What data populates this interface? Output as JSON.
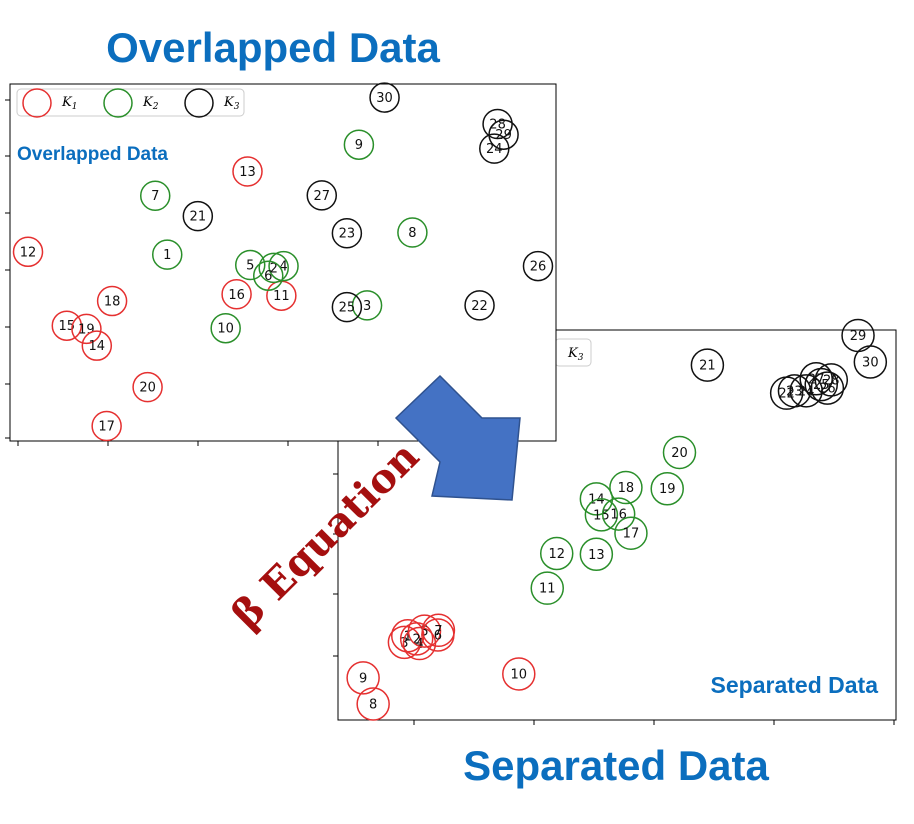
{
  "titles": {
    "overlapped": "Overlapped Data",
    "separated": "Separated Data"
  },
  "colors": {
    "title": "#0B6EBE",
    "k1": "#E53030",
    "k2": "#2A8F2A",
    "k3": "#111111",
    "arrow_fill": "#4472C4",
    "arrow_stroke": "#2F528F",
    "beta_text": "#A50F0F"
  },
  "arrow": {
    "label": "β Equation",
    "icon": "down-right-block-arrow-icon"
  },
  "legend": [
    {
      "base": "K",
      "sub": "1",
      "cluster": "k1"
    },
    {
      "base": "K",
      "sub": "2",
      "cluster": "k2"
    },
    {
      "base": "K",
      "sub": "3",
      "cluster": "k3"
    }
  ],
  "chart_data": [
    {
      "type": "scatter",
      "title": "",
      "panel_label": "Overlapped Data",
      "xlabel": "",
      "ylabel": "",
      "xlim": [
        0,
        100
      ],
      "ylim": [
        0,
        100
      ],
      "grid": false,
      "legend_placement": "top-left",
      "series": [
        {
          "name": "K1",
          "cluster": "k1",
          "points": [
            {
              "label": "12",
              "x": 3.3,
              "y": 53.0
            },
            {
              "label": "13",
              "x": 43.5,
              "y": 75.5
            },
            {
              "label": "16",
              "x": 41.5,
              "y": 41.1
            },
            {
              "label": "11",
              "x": 49.7,
              "y": 40.7
            },
            {
              "label": "18",
              "x": 18.7,
              "y": 39.2
            },
            {
              "label": "15",
              "x": 10.4,
              "y": 32.3
            },
            {
              "label": "19",
              "x": 14.0,
              "y": 31.4
            },
            {
              "label": "14",
              "x": 15.9,
              "y": 26.7
            },
            {
              "label": "20",
              "x": 25.2,
              "y": 15.1
            },
            {
              "label": "17",
              "x": 17.7,
              "y": 4.2
            }
          ]
        },
        {
          "name": "K2",
          "cluster": "k2",
          "points": [
            {
              "label": "9",
              "x": 63.9,
              "y": 83.0
            },
            {
              "label": "7",
              "x": 26.6,
              "y": 68.7
            },
            {
              "label": "8",
              "x": 73.7,
              "y": 58.4
            },
            {
              "label": "1",
              "x": 28.8,
              "y": 52.2
            },
            {
              "label": "5",
              "x": 44.0,
              "y": 49.3
            },
            {
              "label": "4",
              "x": 50.1,
              "y": 49.0
            },
            {
              "label": "2",
              "x": 48.3,
              "y": 48.5
            },
            {
              "label": "6",
              "x": 47.3,
              "y": 46.3
            },
            {
              "label": "3",
              "x": 65.4,
              "y": 38.0
            },
            {
              "label": "10",
              "x": 39.5,
              "y": 31.6
            }
          ]
        },
        {
          "name": "K3",
          "cluster": "k3",
          "points": [
            {
              "label": "30",
              "x": 68.6,
              "y": 96.2
            },
            {
              "label": "28",
              "x": 89.3,
              "y": 88.8
            },
            {
              "label": "29",
              "x": 90.4,
              "y": 85.8
            },
            {
              "label": "24",
              "x": 88.7,
              "y": 81.9
            },
            {
              "label": "27",
              "x": 57.1,
              "y": 68.8
            },
            {
              "label": "21",
              "x": 34.4,
              "y": 63.0
            },
            {
              "label": "23",
              "x": 61.7,
              "y": 58.2
            },
            {
              "label": "26",
              "x": 96.7,
              "y": 49.0
            },
            {
              "label": "22",
              "x": 86.0,
              "y": 38.0
            },
            {
              "label": "25",
              "x": 61.7,
              "y": 37.5
            }
          ]
        }
      ]
    },
    {
      "type": "scatter",
      "title": "",
      "panel_label": "Separated Data",
      "xlabel": "",
      "ylabel": "",
      "xlim": [
        0,
        100
      ],
      "ylim": [
        0,
        100
      ],
      "grid": false,
      "legend_placement": "top-left",
      "series": [
        {
          "name": "K1",
          "cluster": "k1",
          "points": [
            {
              "label": "9",
              "x": 4.5,
              "y": 10.8
            },
            {
              "label": "8",
              "x": 6.3,
              "y": 4.1
            },
            {
              "label": "10",
              "x": 32.4,
              "y": 11.8
            },
            {
              "label": "1",
              "x": 12.5,
              "y": 21.6
            },
            {
              "label": "3",
              "x": 11.9,
              "y": 19.9
            },
            {
              "label": "2",
              "x": 14.1,
              "y": 20.8
            },
            {
              "label": "4",
              "x": 14.6,
              "y": 19.6
            },
            {
              "label": "5",
              "x": 15.5,
              "y": 22.8
            },
            {
              "label": "7",
              "x": 18.0,
              "y": 23.0
            },
            {
              "label": "6",
              "x": 17.9,
              "y": 21.8
            }
          ]
        },
        {
          "name": "K2",
          "cluster": "k2",
          "points": [
            {
              "label": "20",
              "x": 61.2,
              "y": 68.6
            },
            {
              "label": "18",
              "x": 51.6,
              "y": 59.6
            },
            {
              "label": "19",
              "x": 59.0,
              "y": 59.3
            },
            {
              "label": "14",
              "x": 46.3,
              "y": 56.7
            },
            {
              "label": "15",
              "x": 47.2,
              "y": 52.6
            },
            {
              "label": "16",
              "x": 50.3,
              "y": 52.8
            },
            {
              "label": "17",
              "x": 52.5,
              "y": 47.9
            },
            {
              "label": "12",
              "x": 39.2,
              "y": 42.7
            },
            {
              "label": "13",
              "x": 46.3,
              "y": 42.5
            },
            {
              "label": "11",
              "x": 37.5,
              "y": 33.8
            }
          ]
        },
        {
          "name": "K3",
          "cluster": "k3",
          "points": [
            {
              "label": "21",
              "x": 66.2,
              "y": 91.0
            },
            {
              "label": "29",
              "x": 93.2,
              "y": 98.6
            },
            {
              "label": "30",
              "x": 95.4,
              "y": 91.8
            },
            {
              "label": "22",
              "x": 80.4,
              "y": 83.8
            },
            {
              "label": "23",
              "x": 81.8,
              "y": 84.4
            },
            {
              "label": "24",
              "x": 83.9,
              "y": 84.4
            },
            {
              "label": "25",
              "x": 86.6,
              "y": 86.0
            },
            {
              "label": "26",
              "x": 87.7,
              "y": 85.1
            },
            {
              "label": "27",
              "x": 85.7,
              "y": 87.5
            },
            {
              "label": "28",
              "x": 88.4,
              "y": 87.2
            }
          ]
        }
      ]
    }
  ]
}
